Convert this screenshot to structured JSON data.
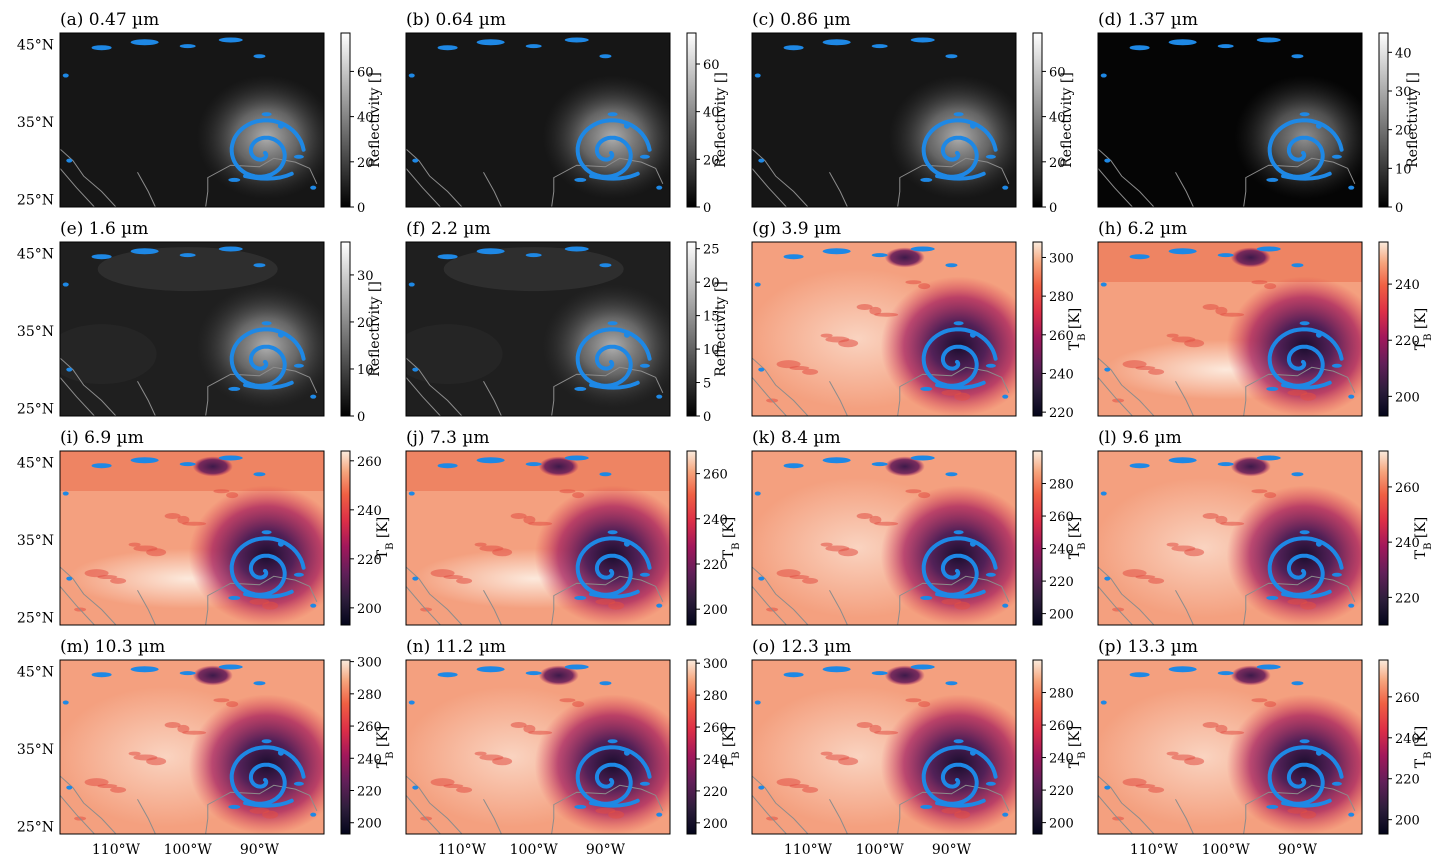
{
  "figure": {
    "lat_ticks": [
      "45°N",
      "35°N",
      "25°N"
    ],
    "lon_ticks": [
      "110°W",
      "100°W",
      "90°W"
    ],
    "overlay_color": "#1e88e5",
    "coast_color": "#8c8c8c"
  },
  "chart_data": [
    {
      "type": "heatmap",
      "title": "(a) 0.47 µm",
      "colormap": "gray",
      "colorbar_label": "Reflectivity []",
      "colorbar_ticks": [
        "0",
        "20",
        "40",
        "60"
      ],
      "colorbar_range": [
        0,
        77
      ]
    },
    {
      "type": "heatmap",
      "title": "(b) 0.64 µm",
      "colormap": "gray",
      "colorbar_label": "Reflectivity []",
      "colorbar_ticks": [
        "0",
        "20",
        "40",
        "60"
      ],
      "colorbar_range": [
        0,
        73
      ]
    },
    {
      "type": "heatmap",
      "title": "(c) 0.86 µm",
      "colormap": "gray",
      "colorbar_label": "Reflectivity []",
      "colorbar_ticks": [
        "0",
        "20",
        "40",
        "60"
      ],
      "colorbar_range": [
        0,
        77
      ]
    },
    {
      "type": "heatmap",
      "title": "(d) 1.37 µm",
      "colormap": "gray",
      "colorbar_label": "Reflectivity []",
      "colorbar_ticks": [
        "0",
        "10",
        "20",
        "30",
        "40"
      ],
      "colorbar_range": [
        0,
        45
      ]
    },
    {
      "type": "heatmap",
      "title": "(e) 1.6 µm",
      "colormap": "gray",
      "colorbar_label": "Reflectivity []",
      "colorbar_ticks": [
        "0",
        "10",
        "20",
        "30"
      ],
      "colorbar_range": [
        0,
        37
      ]
    },
    {
      "type": "heatmap",
      "title": "(f) 2.2 µm",
      "colormap": "gray",
      "colorbar_label": "Reflectivity []",
      "colorbar_ticks": [
        "0",
        "5",
        "10",
        "15",
        "20",
        "25"
      ],
      "colorbar_range": [
        0,
        26
      ]
    },
    {
      "type": "heatmap",
      "title": "(g) 3.9 µm",
      "colormap": "rocket",
      "colorbar_label": "T",
      "colorbar_label_sub": "B",
      "colorbar_label_unit": " [K]",
      "colorbar_ticks": [
        "220",
        "240",
        "260",
        "280",
        "300"
      ],
      "colorbar_range": [
        218,
        308
      ]
    },
    {
      "type": "heatmap",
      "title": "(h) 6.2 µm",
      "colormap": "rocket",
      "colorbar_label": "T",
      "colorbar_label_sub": "B",
      "colorbar_label_unit": " [K]",
      "colorbar_ticks": [
        "200",
        "220",
        "240"
      ],
      "colorbar_range": [
        193,
        255
      ]
    },
    {
      "type": "heatmap",
      "title": "(i) 6.9 µm",
      "colormap": "rocket",
      "colorbar_label": "T",
      "colorbar_label_sub": "B",
      "colorbar_label_unit": " [K]",
      "colorbar_ticks": [
        "200",
        "220",
        "240",
        "260"
      ],
      "colorbar_range": [
        193,
        264
      ]
    },
    {
      "type": "heatmap",
      "title": "(j) 7.3 µm",
      "colormap": "rocket",
      "colorbar_label": "T",
      "colorbar_label_sub": "B",
      "colorbar_label_unit": " [K]",
      "colorbar_ticks": [
        "200",
        "220",
        "240",
        "260"
      ],
      "colorbar_range": [
        193,
        270
      ]
    },
    {
      "type": "heatmap",
      "title": "(k) 8.4 µm",
      "colormap": "rocket",
      "colorbar_label": "T",
      "colorbar_label_sub": "B",
      "colorbar_label_unit": " [K]",
      "colorbar_ticks": [
        "200",
        "220",
        "240",
        "260",
        "280"
      ],
      "colorbar_range": [
        193,
        300
      ]
    },
    {
      "type": "heatmap",
      "title": "(l) 9.6 µm",
      "colormap": "rocket",
      "colorbar_label": "T",
      "colorbar_label_sub": "B",
      "colorbar_label_unit": " [K]",
      "colorbar_ticks": [
        "220",
        "240",
        "260"
      ],
      "colorbar_range": [
        210,
        273
      ]
    },
    {
      "type": "heatmap",
      "title": "(m) 10.3 µm",
      "colormap": "rocket",
      "colorbar_label": "T",
      "colorbar_label_sub": "B",
      "colorbar_label_unit": " [K]",
      "colorbar_ticks": [
        "200",
        "220",
        "240",
        "260",
        "280",
        "300"
      ],
      "colorbar_range": [
        193,
        301
      ]
    },
    {
      "type": "heatmap",
      "title": "(n) 11.2 µm",
      "colormap": "rocket",
      "colorbar_label": "T",
      "colorbar_label_sub": "B",
      "colorbar_label_unit": " [K]",
      "colorbar_ticks": [
        "200",
        "220",
        "240",
        "260",
        "280",
        "300"
      ],
      "colorbar_range": [
        193,
        302
      ]
    },
    {
      "type": "heatmap",
      "title": "(o) 12.3 µm",
      "colormap": "rocket",
      "colorbar_label": "T",
      "colorbar_label_sub": "B",
      "colorbar_label_unit": " [K]",
      "colorbar_ticks": [
        "200",
        "220",
        "240",
        "260",
        "280"
      ],
      "colorbar_range": [
        193,
        300
      ]
    },
    {
      "type": "heatmap",
      "title": "(p) 13.3 µm",
      "colormap": "rocket",
      "colorbar_label": "T",
      "colorbar_label_sub": "B",
      "colorbar_label_unit": " [K]",
      "colorbar_ticks": [
        "200",
        "220",
        "240",
        "260"
      ],
      "colorbar_range": [
        193,
        278
      ]
    }
  ]
}
